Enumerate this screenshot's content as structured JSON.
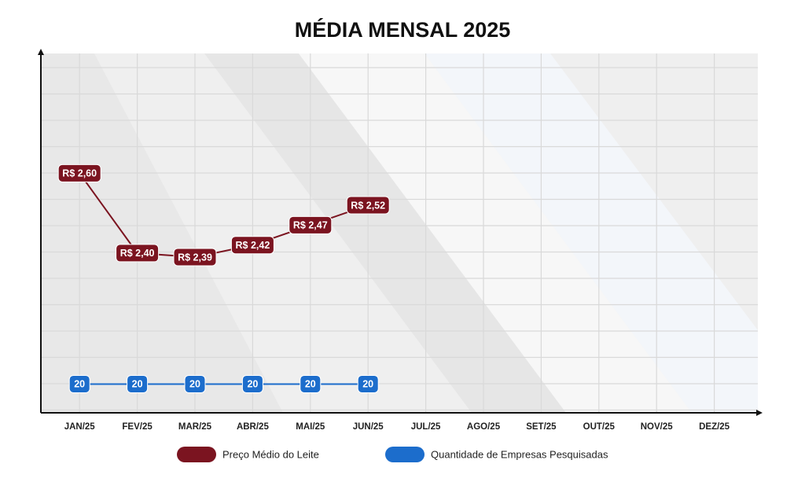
{
  "chart_data": {
    "type": "line",
    "title": "MÉDIA MENSAL 2025",
    "categories": [
      "JAN/25",
      "FEV/25",
      "MAR/25",
      "ABR/25",
      "MAI/25",
      "JUN/25",
      "JUL/25",
      "AGO/25",
      "SET/25",
      "OUT/25",
      "NOV/25",
      "DEZ/25"
    ],
    "series": [
      {
        "name": "Preço Médio do Leite",
        "color": "#7b1420",
        "values": [
          2.6,
          2.4,
          2.39,
          2.42,
          2.47,
          2.52,
          null,
          null,
          null,
          null,
          null,
          null
        ],
        "value_labels": [
          "R$ 2,60",
          "R$ 2,40",
          "R$ 2,39",
          "R$ 2,42",
          "R$ 2,47",
          "R$ 2,52",
          null,
          null,
          null,
          null,
          null,
          null
        ]
      },
      {
        "name": "Quantidade de Empresas Pesquisadas",
        "color": "#1c6dcc",
        "axis": "y2",
        "values": [
          20,
          20,
          20,
          20,
          20,
          20,
          null,
          null,
          null,
          null,
          null,
          null
        ]
      }
    ],
    "ylim": [
      2.0,
      2.9
    ],
    "y2lim": [
      0,
      250
    ],
    "grid": true
  }
}
